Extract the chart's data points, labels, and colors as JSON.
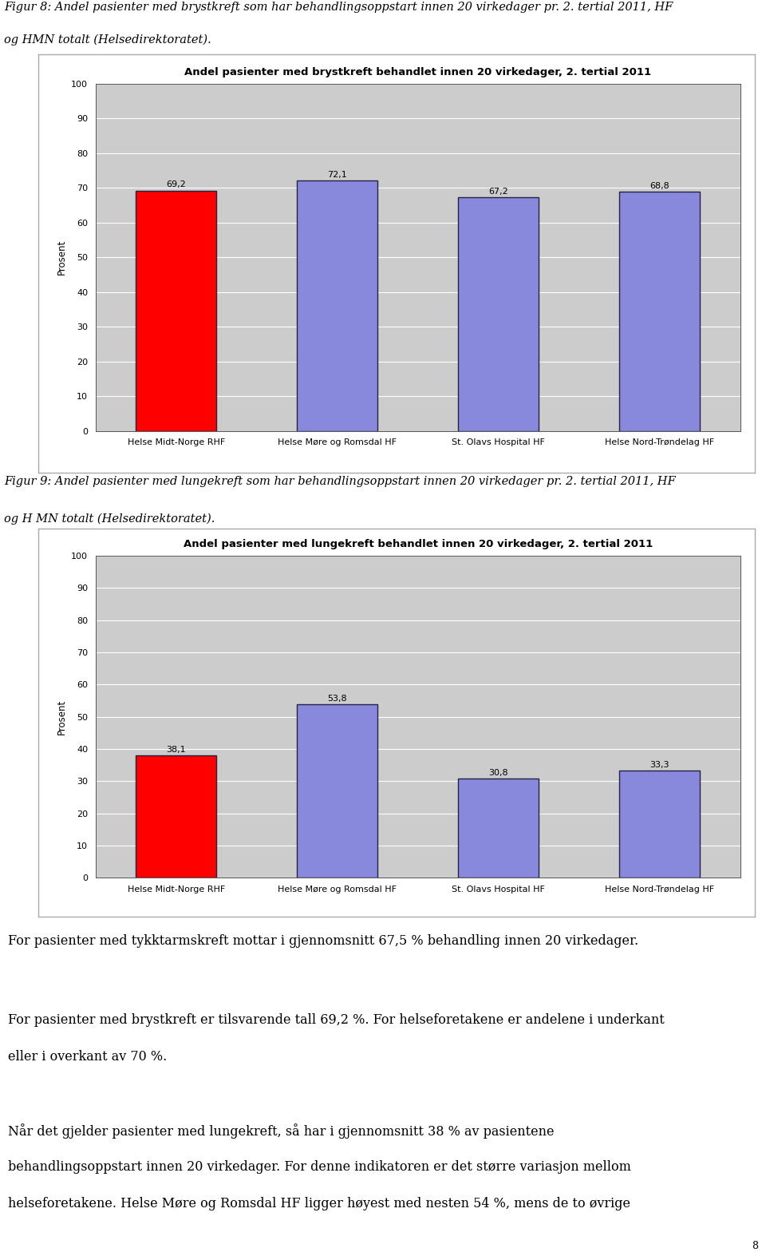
{
  "chart1": {
    "title": "Andel pasienter med brystkreft behandlet innen 20 virkedager, 2. tertial 2011",
    "categories": [
      "Helse Midt-Norge RHF",
      "Helse Møre og Romsdal HF",
      "St. Olavs Hospital HF",
      "Helse Nord-Trøndelag HF"
    ],
    "values": [
      69.2,
      72.1,
      67.2,
      68.8
    ],
    "value_labels": [
      "69,2",
      "72,1",
      "67,2",
      "68,8"
    ],
    "colors": [
      "#ff0000",
      "#8888dd",
      "#8888dd",
      "#8888dd"
    ],
    "ylabel": "Prosent",
    "ylim": [
      0,
      100
    ],
    "yticks": [
      0,
      10,
      20,
      30,
      40,
      50,
      60,
      70,
      80,
      90,
      100
    ]
  },
  "chart2": {
    "title": "Andel pasienter med lungekreft behandlet innen 20 virkedager, 2. tertial 2011",
    "categories": [
      "Helse Midt-Norge RHF",
      "Helse Møre og Romsdal HF",
      "St. Olavs Hospital HF",
      "Helse Nord-Trøndelag HF"
    ],
    "values": [
      38.1,
      53.8,
      30.8,
      33.3
    ],
    "value_labels": [
      "38,1",
      "53,8",
      "30,8",
      "33,3"
    ],
    "colors": [
      "#ff0000",
      "#8888dd",
      "#8888dd",
      "#8888dd"
    ],
    "ylabel": "Prosent",
    "ylim": [
      0,
      100
    ],
    "yticks": [
      0,
      10,
      20,
      30,
      40,
      50,
      60,
      70,
      80,
      90,
      100
    ]
  },
  "fig8_caption_line1": "Figur 8: Andel pasienter med brystkreft som har behandlingsoppstart innen 20 virkedager pr. 2. tertial 2011, HF",
  "fig8_caption_line2": "og HMN totalt (Helsedirektoratet).",
  "fig9_caption_line1": "Figur 9: Andel pasienter med lungekreft som har behandlingsoppstart innen 20 virkedager pr. 2. tertial 2011, HF",
  "fig9_caption_line2": "og H MN totalt (Helsedirektoratet).",
  "paragraph1": "For pasienter med tykktarmskreft mottar i gjennomsnitt 67,5 % behandling innen 20 virkedager.",
  "paragraph2_line1": "For pasienter med brystkreft er tilsvarende tall 69,2 %. For helseforetakene er andelene i underkant",
  "paragraph2_line2": "eller i overkant av 70 %.",
  "paragraph3_line1": "Når det gjelder pasienter med lungekreft, så har i gjennomsnitt 38 % av pasientene",
  "paragraph3_line2": "behandlingsoppstart innen 20 virkedager. For denne indikatoren er det større variasjon mellom",
  "paragraph3_line3": "helseforetakene. Helse Møre og Romsdal HF ligger høyest med nesten 54 %, mens de to øvrige",
  "plot_bg_color": "#cccccc",
  "chart_outer_bg": "#ffffff",
  "bar_edge_color": "#222244",
  "grid_color": "#ffffff",
  "label_fontsize": 8.0,
  "title_fontsize": 9.5,
  "value_fontsize": 8.0,
  "ylabel_fontsize": 8.5,
  "caption_fontsize": 10.5,
  "body_fontsize": 11.5,
  "page_num_fontsize": 9
}
